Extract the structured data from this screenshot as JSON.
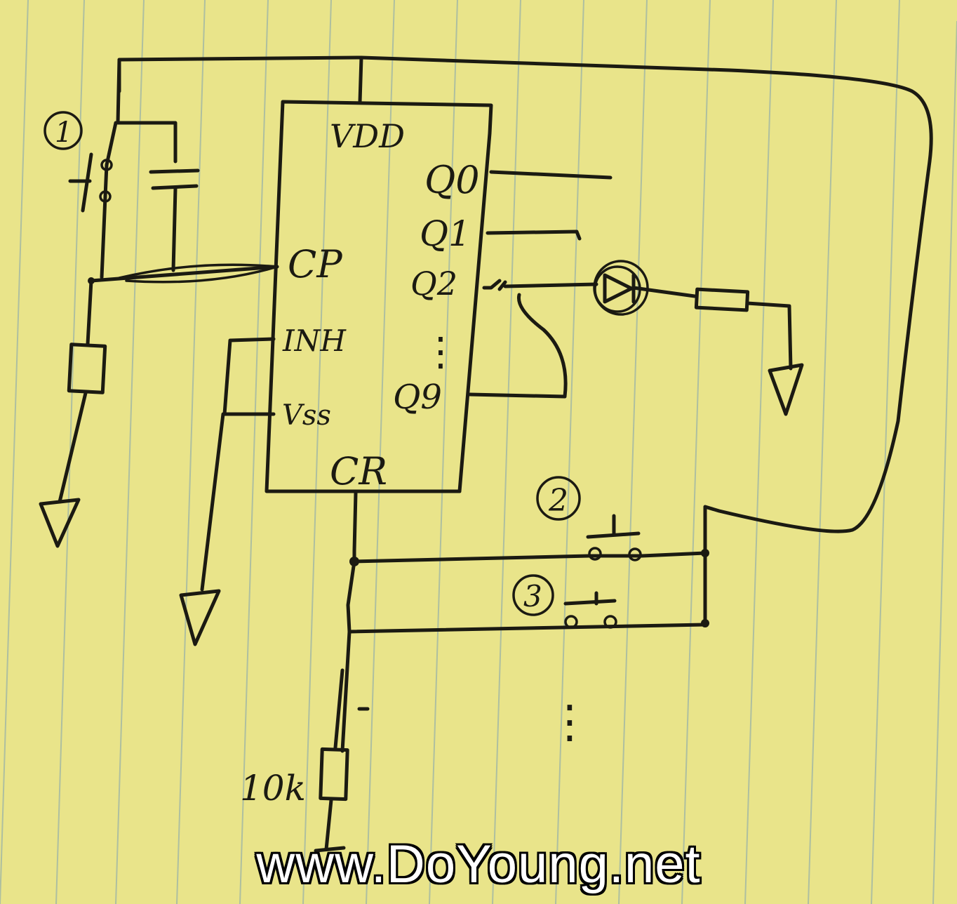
{
  "diagram": {
    "chip_labels": {
      "vdd": "VDD",
      "cp": "CP",
      "inh": "INH",
      "vss": "Vss",
      "cr": "CR",
      "q0": "Q0",
      "q1": "Q1",
      "q2": "Q2",
      "dots": "⋮",
      "q9": "Q9"
    },
    "markers": {
      "m1": "1",
      "m2": "2",
      "m3": "3"
    },
    "resistor_value": "10k",
    "ellipsis": "⋮"
  },
  "watermark": "www.DoYoung.net",
  "colors": {
    "paper": "#e9e48a",
    "ink": "#1b1a12",
    "rule_line": "#aebfa0"
  }
}
